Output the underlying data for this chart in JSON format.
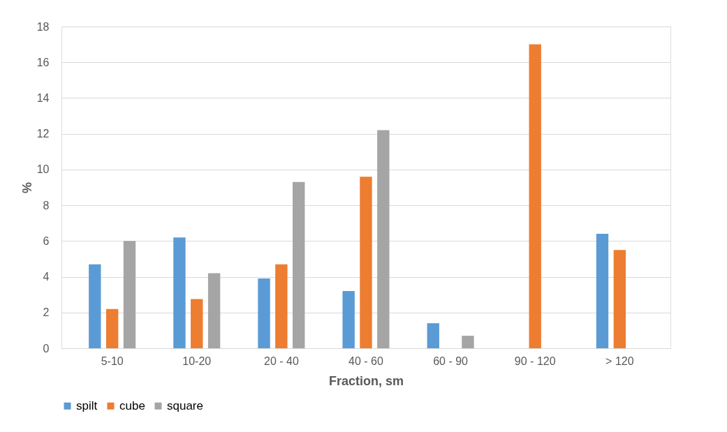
{
  "chart_data": {
    "type": "bar",
    "xlabel": "Fraction, sm",
    "ylabel": "%",
    "categories": [
      "5-10",
      "10-20",
      "20 - 40",
      "40 - 60",
      "60 - 90",
      "90 - 120",
      "> 120"
    ],
    "series": [
      {
        "name": "spilt",
        "color": "#5b9bd5",
        "values": [
          4.7,
          6.2,
          3.9,
          3.2,
          1.4,
          0,
          6.4
        ]
      },
      {
        "name": "cube",
        "color": "#ed7d31",
        "values": [
          2.2,
          2.75,
          4.7,
          9.6,
          0,
          17.0,
          5.5
        ]
      },
      {
        "name": "square",
        "color": "#a5a5a5",
        "values": [
          6.0,
          4.2,
          9.3,
          12.2,
          0.7,
          0,
          0
        ]
      }
    ],
    "ylim": [
      0,
      18
    ],
    "yticks": [
      0,
      2,
      4,
      6,
      8,
      10,
      12,
      14,
      16,
      18
    ],
    "grid": "y",
    "legend": "bottom"
  }
}
